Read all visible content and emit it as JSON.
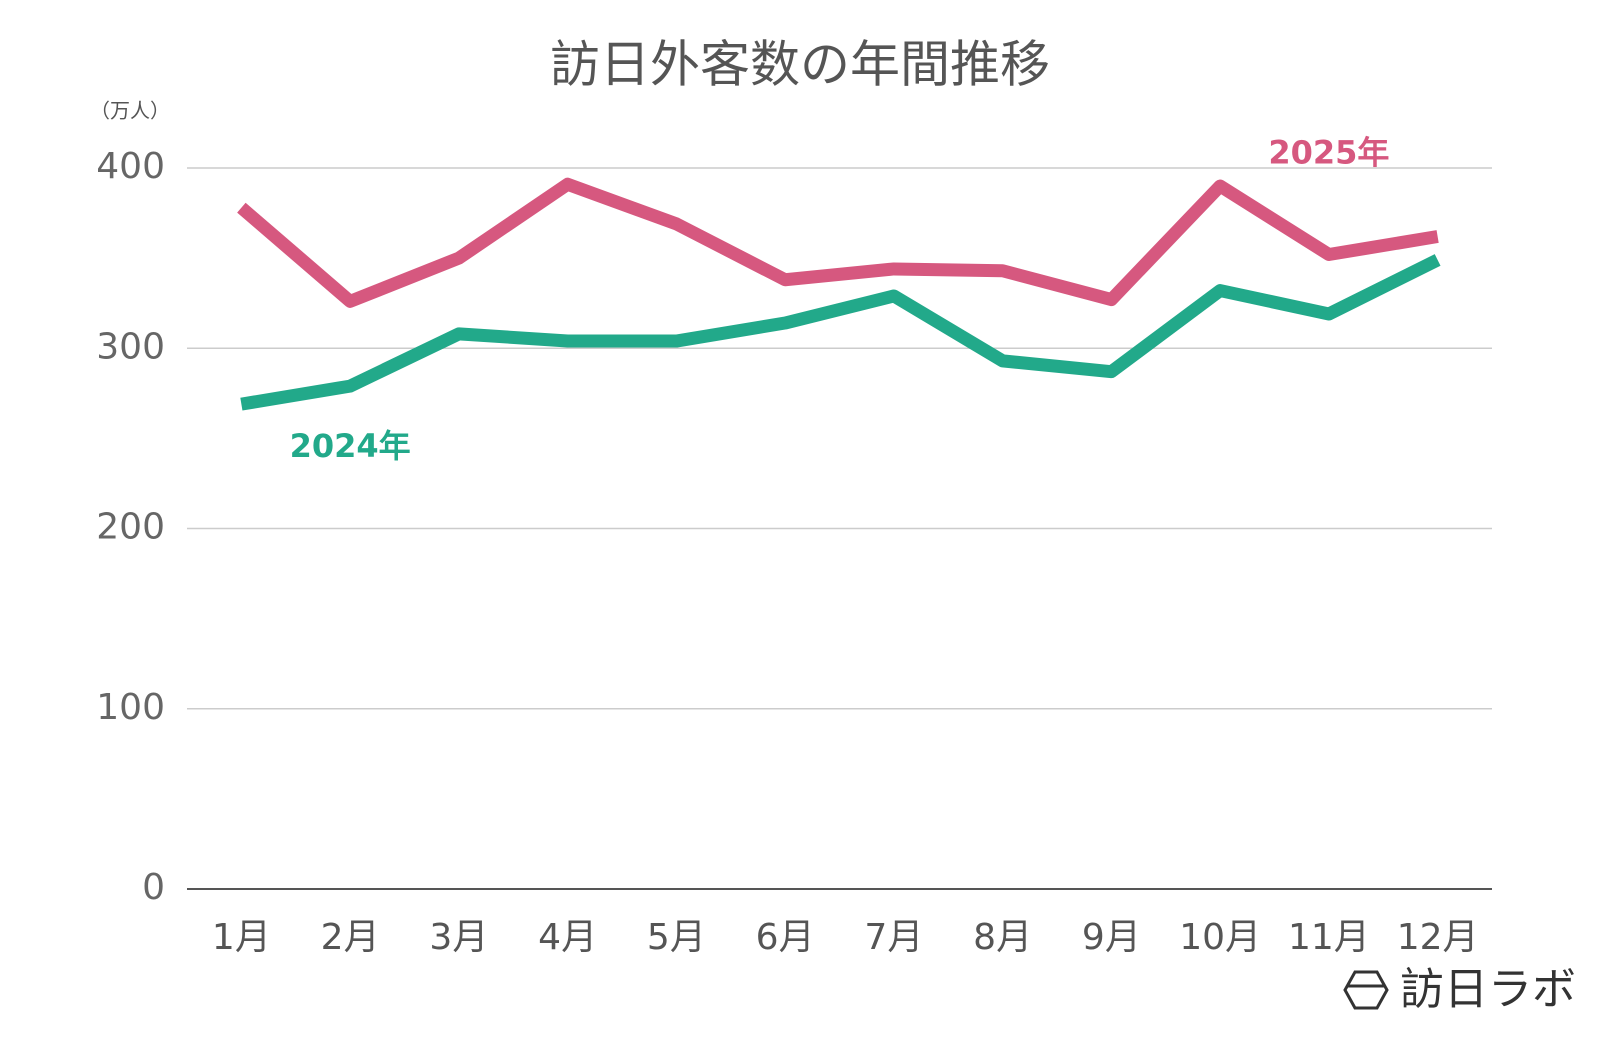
{
  "chart_data": {
    "type": "line",
    "title": "訪日外客数の年間推移",
    "y_unit": "（万人）",
    "categories": [
      "1月",
      "2月",
      "3月",
      "4月",
      "5月",
      "6月",
      "7月",
      "8月",
      "9月",
      "10月",
      "11月",
      "12月"
    ],
    "series": [
      {
        "name": "2025年",
        "color": "#d6587f",
        "values": [
          378,
          326,
          350,
          391,
          369,
          338,
          344,
          343,
          327,
          390,
          352,
          362
        ]
      },
      {
        "name": "2024年",
        "color": "#22a98a",
        "values": [
          269,
          279,
          308,
          304,
          304,
          314,
          329,
          293,
          287,
          332,
          319,
          349
        ]
      }
    ],
    "ylim": [
      0,
      400
    ],
    "yticks": [
      0,
      100,
      200,
      300,
      400
    ],
    "grid": true
  },
  "logo": "訪日ラボ"
}
